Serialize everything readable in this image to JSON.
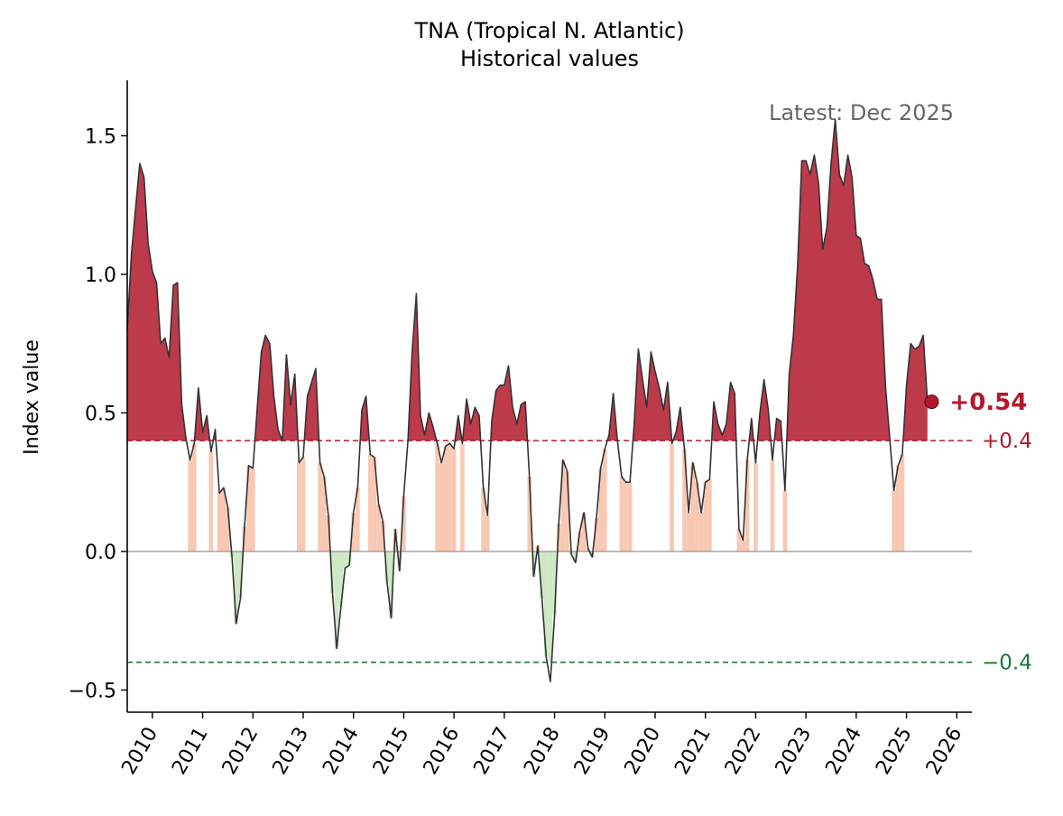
{
  "chart_data": {
    "type": "area",
    "title": "TNA (Tropical N. Atlantic)",
    "subtitle": "Historical values",
    "ylabel": "Index value",
    "xlabel": "",
    "xlim": [
      2009.5,
      2026.3
    ],
    "ylim": [
      -0.58,
      1.7
    ],
    "x_ticks": [
      2010,
      2011,
      2012,
      2013,
      2014,
      2015,
      2016,
      2017,
      2018,
      2019,
      2020,
      2021,
      2022,
      2023,
      2024,
      2025,
      2026
    ],
    "y_ticks": [
      {
        "value": -0.5,
        "label": "−0.5"
      },
      {
        "value": 0.0,
        "label": "0.0"
      },
      {
        "value": 0.5,
        "label": "0.5"
      },
      {
        "value": 1.0,
        "label": "1.0"
      },
      {
        "value": 1.5,
        "label": "1.5"
      }
    ],
    "thresholds": [
      {
        "value": 0.4,
        "label": "+0.4",
        "color": "#b2182b",
        "style": "dashed"
      },
      {
        "value": -0.4,
        "label": "−0.4",
        "color": "#1b7837",
        "style": "dashed"
      }
    ],
    "zero_line": true,
    "grid": false,
    "latest_label": "Latest: Dec 2025",
    "latest_value_label": "+0.54",
    "latest_point": {
      "x": 2025.5,
      "y": 0.54
    },
    "series": [
      {
        "start": 2009.5,
        "step_months": 1,
        "values": [
          0.8,
          1.07,
          1.24,
          1.4,
          1.35,
          1.11,
          1.01,
          0.97,
          0.75,
          0.77,
          0.7,
          0.96,
          0.97,
          0.53,
          0.41,
          0.33,
          0.39,
          0.59,
          0.43,
          0.49,
          0.36,
          0.44,
          0.21,
          0.23,
          0.16,
          -0.02,
          -0.26,
          -0.17,
          0.09,
          0.31,
          0.3,
          0.51,
          0.72,
          0.78,
          0.75,
          0.56,
          0.44,
          0.4,
          0.71,
          0.53,
          0.64,
          0.32,
          0.34,
          0.56,
          0.61,
          0.66,
          0.32,
          0.27,
          0.13,
          -0.15,
          -0.35,
          -0.2,
          -0.06,
          -0.05,
          0.14,
          0.23,
          0.51,
          0.56,
          0.35,
          0.34,
          0.17,
          0.11,
          -0.11,
          -0.24,
          0.08,
          -0.07,
          0.2,
          0.4,
          0.72,
          0.93,
          0.49,
          0.42,
          0.5,
          0.45,
          0.39,
          0.32,
          0.38,
          0.39,
          0.37,
          0.49,
          0.39,
          0.55,
          0.46,
          0.52,
          0.49,
          0.23,
          0.13,
          0.47,
          0.58,
          0.6,
          0.6,
          0.67,
          0.52,
          0.46,
          0.53,
          0.54,
          0.27,
          -0.09,
          0.02,
          -0.17,
          -0.38,
          -0.47,
          -0.23,
          0.1,
          0.33,
          0.29,
          -0.01,
          -0.04,
          0.07,
          0.14,
          0.01,
          -0.02,
          0.12,
          0.3,
          0.37,
          0.42,
          0.57,
          0.4,
          0.27,
          0.25,
          0.25,
          0.46,
          0.73,
          0.62,
          0.52,
          0.72,
          0.65,
          0.59,
          0.51,
          0.61,
          0.39,
          0.43,
          0.52,
          0.37,
          0.14,
          0.32,
          0.25,
          0.14,
          0.25,
          0.26,
          0.54,
          0.46,
          0.42,
          0.46,
          0.61,
          0.57,
          0.08,
          0.04,
          0.33,
          0.48,
          0.32,
          0.5,
          0.62,
          0.51,
          0.33,
          0.48,
          0.47,
          0.22,
          0.64,
          0.78,
          1.03,
          1.41,
          1.41,
          1.36,
          1.43,
          1.33,
          1.09,
          1.17,
          1.4,
          1.56,
          1.36,
          1.32,
          1.43,
          1.35,
          1.14,
          1.13,
          1.04,
          1.03,
          0.98,
          0.91,
          0.91,
          0.59,
          0.41,
          0.22,
          0.31,
          0.35,
          0.6,
          0.75,
          0.73,
          0.74,
          0.78,
          0.54
        ]
      }
    ],
    "colors": {
      "above_threshold": "#bd3a4b",
      "between_positive": "#f8c8b2",
      "between_negative": "#cce8c4",
      "line": "#333333",
      "zero_line": "#888888",
      "latest_marker": "#b2182b"
    }
  }
}
